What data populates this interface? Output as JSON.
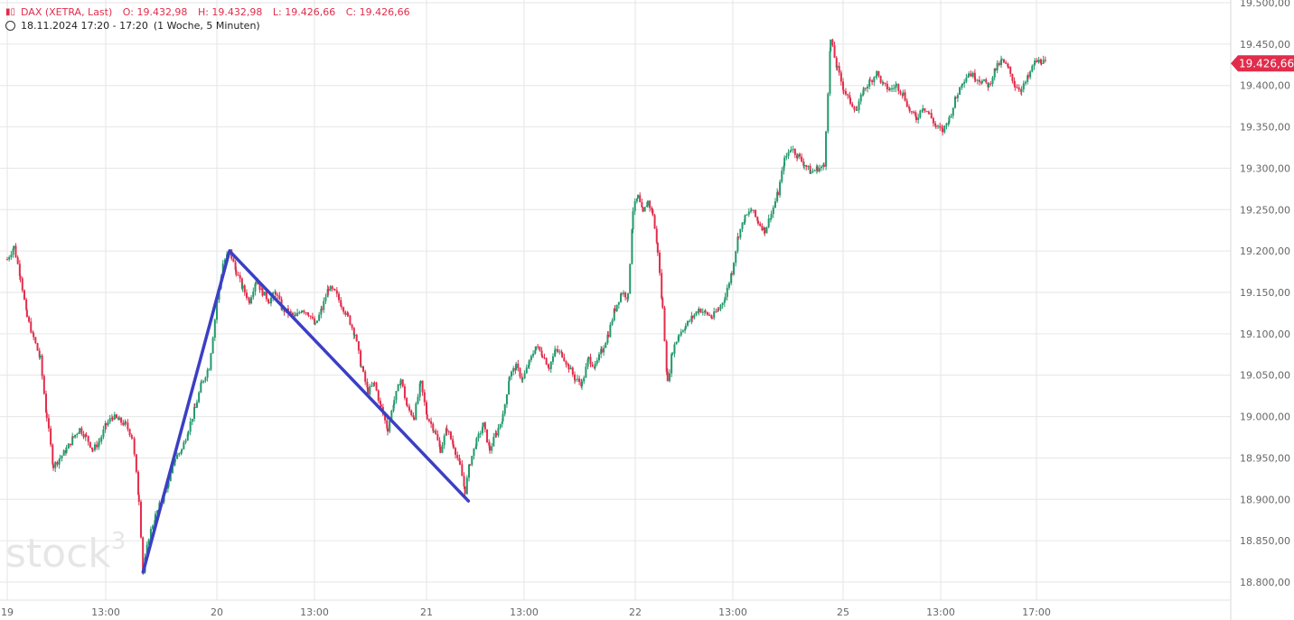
{
  "header": {
    "instrument": "DAX (XETRA, Last)",
    "open": "O: 19.432,98",
    "high": "H: 19.432,98",
    "low": "L: 19.426,66",
    "close": "C: 19.426,66",
    "timerange": "18.11.2024 17:20 - 17:20",
    "interval": "(1 Woche, 5 Minuten)"
  },
  "logo": {
    "text": "stock",
    "superscript": "3"
  },
  "colors": {
    "up": "#22996b",
    "down": "#e22c4b",
    "drawing": "#3b3fc4",
    "grid": "#e6e6e6"
  },
  "chart_data": {
    "type": "candlestick",
    "y_ticks": [
      "18.800,00",
      "18.850,00",
      "18.900,00",
      "18.950,00",
      "19.000,00",
      "19.050,00",
      "19.100,00",
      "19.150,00",
      "19.200,00",
      "19.250,00",
      "19.300,00",
      "19.350,00",
      "19.400,00",
      "19.450,00",
      "19.500,00"
    ],
    "ylim": [
      18780,
      19500
    ],
    "x_ticks": [
      "19",
      "13:00",
      "20",
      "13:00",
      "21",
      "13:00",
      "22",
      "13:00",
      "25",
      "13:00",
      "17:00"
    ],
    "last_price_label": "19.426,66",
    "last_price": 19426.66,
    "trendlines": [
      {
        "points": [
          [
            0.165,
            18812
          ],
          [
            0.27,
            19200
          ],
          [
            0.56,
            18898
          ]
        ]
      }
    ],
    "path": [
      [
        0.0,
        19190
      ],
      [
        0.008,
        19205
      ],
      [
        0.016,
        19170
      ],
      [
        0.024,
        19120
      ],
      [
        0.032,
        19095
      ],
      [
        0.04,
        19070
      ],
      [
        0.048,
        19000
      ],
      [
        0.056,
        18940
      ],
      [
        0.064,
        18950
      ],
      [
        0.072,
        18960
      ],
      [
        0.08,
        18975
      ],
      [
        0.088,
        18985
      ],
      [
        0.096,
        18975
      ],
      [
        0.104,
        18960
      ],
      [
        0.112,
        18970
      ],
      [
        0.12,
        18990
      ],
      [
        0.128,
        19000
      ],
      [
        0.136,
        18995
      ],
      [
        0.144,
        18990
      ],
      [
        0.152,
        18975
      ],
      [
        0.16,
        18900
      ],
      [
        0.165,
        18812
      ],
      [
        0.172,
        18855
      ],
      [
        0.18,
        18880
      ],
      [
        0.188,
        18900
      ],
      [
        0.196,
        18920
      ],
      [
        0.204,
        18950
      ],
      [
        0.212,
        18960
      ],
      [
        0.22,
        18985
      ],
      [
        0.228,
        19010
      ],
      [
        0.236,
        19040
      ],
      [
        0.245,
        19060
      ],
      [
        0.255,
        19140
      ],
      [
        0.262,
        19185
      ],
      [
        0.27,
        19200
      ],
      [
        0.278,
        19175
      ],
      [
        0.286,
        19155
      ],
      [
        0.294,
        19140
      ],
      [
        0.302,
        19165
      ],
      [
        0.31,
        19150
      ],
      [
        0.318,
        19140
      ],
      [
        0.326,
        19150
      ],
      [
        0.334,
        19130
      ],
      [
        0.342,
        19125
      ],
      [
        0.35,
        19120
      ],
      [
        0.358,
        19130
      ],
      [
        0.366,
        19125
      ],
      [
        0.374,
        19110
      ],
      [
        0.382,
        19130
      ],
      [
        0.39,
        19155
      ],
      [
        0.398,
        19150
      ],
      [
        0.406,
        19135
      ],
      [
        0.414,
        19120
      ],
      [
        0.422,
        19100
      ],
      [
        0.43,
        19060
      ],
      [
        0.438,
        19030
      ],
      [
        0.446,
        19040
      ],
      [
        0.454,
        19010
      ],
      [
        0.462,
        18985
      ],
      [
        0.47,
        19020
      ],
      [
        0.478,
        19045
      ],
      [
        0.486,
        19010
      ],
      [
        0.494,
        19000
      ],
      [
        0.502,
        19040
      ],
      [
        0.51,
        19000
      ],
      [
        0.518,
        18985
      ],
      [
        0.526,
        18960
      ],
      [
        0.534,
        18985
      ],
      [
        0.542,
        18965
      ],
      [
        0.55,
        18940
      ],
      [
        0.556,
        18910
      ],
      [
        0.562,
        18945
      ],
      [
        0.57,
        18970
      ],
      [
        0.578,
        18990
      ],
      [
        0.586,
        18960
      ],
      [
        0.594,
        18980
      ],
      [
        0.602,
        19000
      ],
      [
        0.61,
        19050
      ],
      [
        0.618,
        19060
      ],
      [
        0.626,
        19045
      ],
      [
        0.634,
        19065
      ],
      [
        0.642,
        19085
      ],
      [
        0.65,
        19075
      ],
      [
        0.658,
        19060
      ],
      [
        0.666,
        19080
      ],
      [
        0.674,
        19075
      ],
      [
        0.682,
        19060
      ],
      [
        0.69,
        19045
      ],
      [
        0.698,
        19040
      ],
      [
        0.706,
        19070
      ],
      [
        0.714,
        19060
      ],
      [
        0.722,
        19080
      ],
      [
        0.73,
        19100
      ],
      [
        0.738,
        19130
      ],
      [
        0.746,
        19150
      ],
      [
        0.754,
        19145
      ],
      [
        0.76,
        19250
      ],
      [
        0.766,
        19265
      ],
      [
        0.772,
        19245
      ],
      [
        0.778,
        19260
      ],
      [
        0.784,
        19245
      ],
      [
        0.79,
        19200
      ],
      [
        0.796,
        19130
      ],
      [
        0.802,
        19040
      ],
      [
        0.808,
        19080
      ],
      [
        0.816,
        19100
      ],
      [
        0.824,
        19110
      ],
      [
        0.832,
        19120
      ],
      [
        0.84,
        19130
      ],
      [
        0.848,
        19125
      ],
      [
        0.856,
        19120
      ],
      [
        0.864,
        19130
      ],
      [
        0.872,
        19145
      ],
      [
        0.88,
        19175
      ],
      [
        0.888,
        19220
      ],
      [
        0.896,
        19240
      ],
      [
        0.904,
        19250
      ],
      [
        0.912,
        19235
      ],
      [
        0.92,
        19225
      ],
      [
        0.928,
        19245
      ],
      [
        0.936,
        19270
      ],
      [
        0.944,
        19310
      ],
      [
        0.952,
        19325
      ],
      [
        0.96,
        19315
      ],
      [
        0.968,
        19305
      ],
      [
        0.976,
        19295
      ],
      [
        0.984,
        19300
      ],
      [
        0.992,
        19302
      ],
      [
        1.0,
        19455
      ],
      [
        1.008,
        19420
      ],
      [
        1.016,
        19395
      ],
      [
        1.024,
        19380
      ],
      [
        1.032,
        19370
      ],
      [
        1.04,
        19395
      ],
      [
        1.048,
        19405
      ],
      [
        1.056,
        19415
      ],
      [
        1.064,
        19400
      ],
      [
        1.072,
        19395
      ],
      [
        1.08,
        19400
      ],
      [
        1.088,
        19390
      ],
      [
        1.096,
        19370
      ],
      [
        1.104,
        19360
      ],
      [
        1.112,
        19375
      ],
      [
        1.12,
        19365
      ],
      [
        1.128,
        19350
      ],
      [
        1.136,
        19345
      ],
      [
        1.144,
        19360
      ],
      [
        1.152,
        19385
      ],
      [
        1.16,
        19405
      ],
      [
        1.168,
        19415
      ],
      [
        1.176,
        19410
      ],
      [
        1.184,
        19405
      ],
      [
        1.192,
        19400
      ],
      [
        1.2,
        19420
      ],
      [
        1.208,
        19430
      ],
      [
        1.216,
        19420
      ],
      [
        1.224,
        19400
      ],
      [
        1.232,
        19395
      ],
      [
        1.24,
        19410
      ],
      [
        1.248,
        19428
      ],
      [
        1.256,
        19430
      ],
      [
        1.262,
        19426
      ]
    ]
  }
}
